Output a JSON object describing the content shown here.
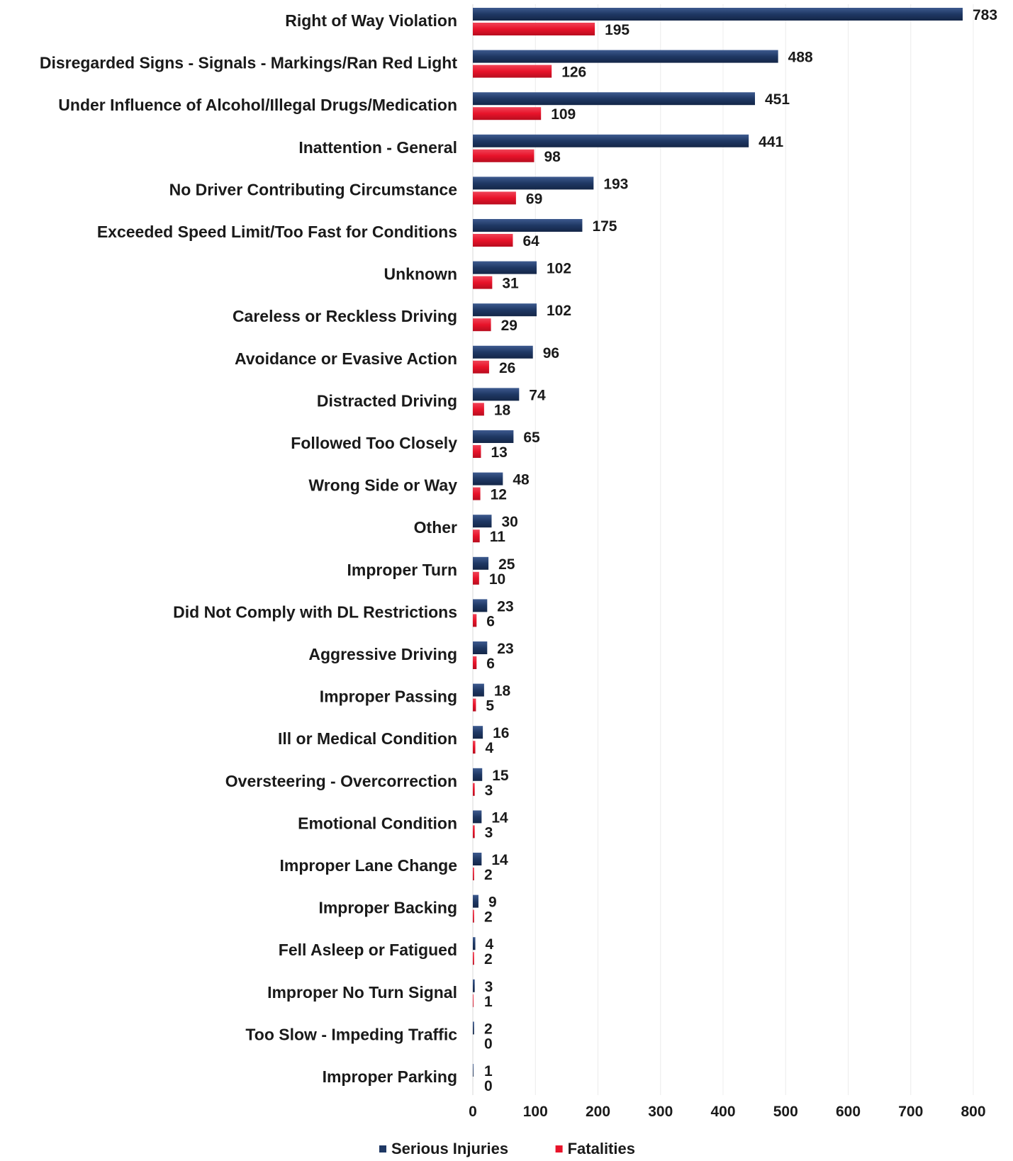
{
  "chart_data": {
    "type": "bar",
    "orientation": "horizontal",
    "categories": [
      "Right of Way Violation",
      "Disregarded Signs - Signals - Markings/Ran Red Light",
      "Under Influence of Alcohol/Illegal Drugs/Medication",
      "Inattention - General",
      "No Driver Contributing Circumstance",
      "Exceeded Speed Limit/Too Fast for Conditions",
      "Unknown",
      "Careless or Reckless Driving",
      "Avoidance or Evasive Action",
      "Distracted Driving",
      "Followed Too Closely",
      "Wrong Side or Way",
      "Other",
      "Improper Turn",
      "Did Not Comply with DL Restrictions",
      "Aggressive Driving",
      "Improper Passing",
      "Ill or Medical Condition",
      "Oversteering - Overcorrection",
      "Emotional Condition",
      "Improper Lane Change",
      "Improper Backing",
      "Fell Asleep or Fatigued",
      "Improper No Turn Signal",
      "Too Slow - Impeding Traffic",
      "Improper Parking"
    ],
    "series": [
      {
        "name": "Serious Injuries",
        "color": "#1f3864",
        "values": [
          783,
          488,
          451,
          441,
          193,
          175,
          102,
          102,
          96,
          74,
          65,
          48,
          30,
          25,
          23,
          23,
          18,
          16,
          15,
          14,
          14,
          9,
          4,
          3,
          2,
          1
        ]
      },
      {
        "name": "Fatalities",
        "color": "#e8132a",
        "values": [
          195,
          126,
          109,
          98,
          69,
          64,
          31,
          29,
          26,
          18,
          13,
          12,
          11,
          10,
          6,
          6,
          5,
          4,
          3,
          3,
          2,
          2,
          2,
          1,
          0,
          0
        ]
      }
    ],
    "xaxis": {
      "range": [
        0,
        800
      ],
      "ticks": [
        "0",
        "100",
        "200",
        "300",
        "400",
        "500",
        "600",
        "700",
        "800"
      ]
    },
    "grid": true,
    "legend": "bottom-center",
    "data_labels": true
  }
}
